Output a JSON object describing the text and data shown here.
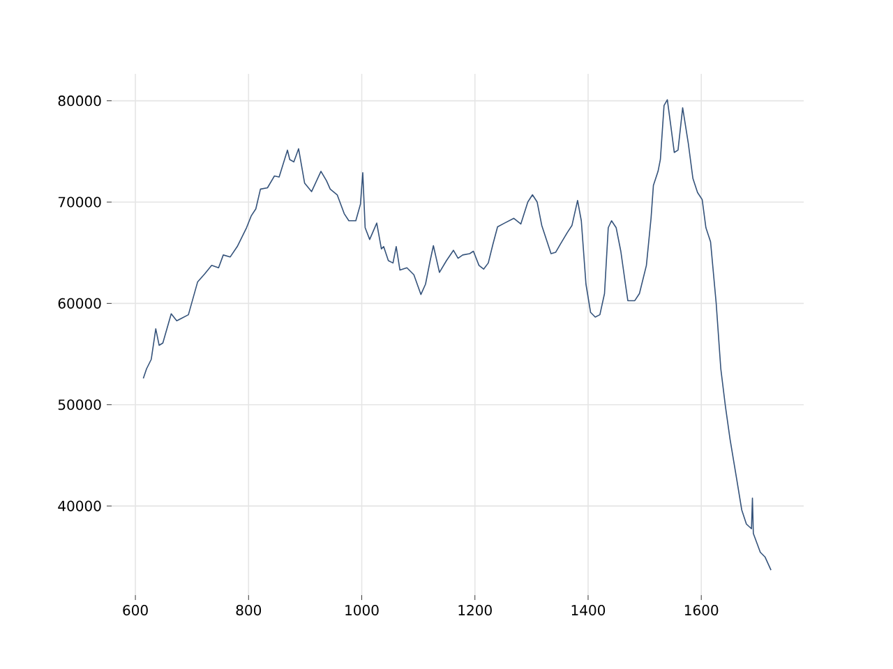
{
  "chart_data": {
    "type": "line",
    "color": "#34527a",
    "grid": true,
    "marker": "none",
    "line_style": "solid",
    "xlim": [
      558,
      1781
    ],
    "ylim": [
      31200,
      82660
    ],
    "xticks": [
      600,
      800,
      1000,
      1200,
      1400,
      1600
    ],
    "yticks": [
      40000,
      50000,
      60000,
      70000,
      80000
    ],
    "x": [
      614,
      619.7,
      628,
      636,
      642,
      648.5,
      663.3,
      673,
      693.7,
      710,
      722.5,
      734.8,
      747,
      755.3,
      767.6,
      780,
      796.4,
      804.6,
      812.8,
      821,
      833.4,
      845.7,
      854,
      868.7,
      872.8,
      880,
      888.4,
      899,
      911.4,
      927.9,
      937.7,
      944.3,
      956.6,
      969,
      977.2,
      989.5,
      997.7,
      1001.8,
      1006,
      1014,
      1026.5,
      1034.7,
      1038.7,
      1047,
      1055.2,
      1060.9,
      1067.5,
      1079.8,
      1092.1,
      1104.5,
      1112.7,
      1120.9,
      1126.6,
      1137.3,
      1149.7,
      1162,
      1170.2,
      1178.4,
      1190.7,
      1197.3,
      1207.2,
      1215.4,
      1223.6,
      1231.8,
      1240,
      1252.4,
      1268.8,
      1281.1,
      1293.5,
      1301.7,
      1309.9,
      1318.1,
      1326.3,
      1334.5,
      1342.8,
      1351,
      1363.3,
      1371.5,
      1381.4,
      1388,
      1396.2,
      1404.4,
      1412.6,
      1420.8,
      1429,
      1435.6,
      1441.4,
      1449.6,
      1457.8,
      1466,
      1470.2,
      1482.5,
      1490.7,
      1503,
      1511.2,
      1515.4,
      1523.6,
      1527.7,
      1534.2,
      1540,
      1545.8,
      1552.3,
      1558.9,
      1567.1,
      1577,
      1585.2,
      1593.4,
      1601.6,
      1608.2,
      1616.4,
      1626.3,
      1634.5,
      1642.7,
      1650.9,
      1663.3,
      1671.5,
      1679.7,
      1688.7,
      1690.4,
      1692,
      1704.3,
      1712.6,
      1723.2
    ],
    "values": [
      52600,
      53540,
      54470,
      57490,
      55860,
      56090,
      58970,
      58280,
      58880,
      62130,
      62920,
      63750,
      63520,
      64780,
      64590,
      65610,
      67470,
      68630,
      69330,
      71280,
      71410,
      72580,
      72480,
      75130,
      74200,
      73970,
      75270,
      71880,
      71040,
      73040,
      72110,
      71280,
      70720,
      68860,
      68160,
      68160,
      69790,
      72900,
      67470,
      66310,
      67930,
      65380,
      65610,
      64220,
      63990,
      65610,
      63290,
      63520,
      62830,
      60880,
      61900,
      64220,
      65700,
      63060,
      64220,
      65240,
      64450,
      64780,
      64910,
      65150,
      63750,
      63380,
      63990,
      65840,
      67560,
      67930,
      68400,
      67840,
      70020,
      70720,
      70020,
      67700,
      66310,
      64910,
      65050,
      65840,
      67000,
      67700,
      70160,
      68160,
      61900,
      59110,
      58650,
      58880,
      60970,
      67470,
      68160,
      67470,
      65150,
      61900,
      60270,
      60270,
      60970,
      63750,
      68400,
      71650,
      73040,
      74200,
      79540,
      80100,
      77680,
      74900,
      75130,
      79310,
      75830,
      72340,
      70950,
      70250,
      67470,
      66080,
      60040,
      53540,
      49820,
      46570,
      42400,
      39610,
      38220,
      37750,
      40770,
      37290,
      35430,
      34970,
      33670
    ]
  }
}
